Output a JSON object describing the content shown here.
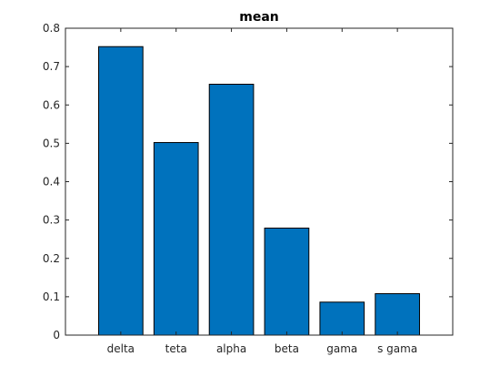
{
  "chart_data": {
    "type": "bar",
    "title": "mean",
    "xlabel": "",
    "ylabel": "",
    "categories": [
      "delta",
      "teta",
      "alpha",
      "beta",
      "gama",
      "s gama"
    ],
    "values": [
      0.752,
      0.502,
      0.654,
      0.279,
      0.086,
      0.108
    ],
    "ylim": [
      0,
      0.8
    ],
    "yticks": [
      "0",
      "0.1",
      "0.2",
      "0.3",
      "0.4",
      "0.5",
      "0.6",
      "0.7",
      "0.8"
    ],
    "grid": false,
    "legend": "none",
    "bar_color": "#0072BD",
    "bar_edge_color": "#000000"
  }
}
